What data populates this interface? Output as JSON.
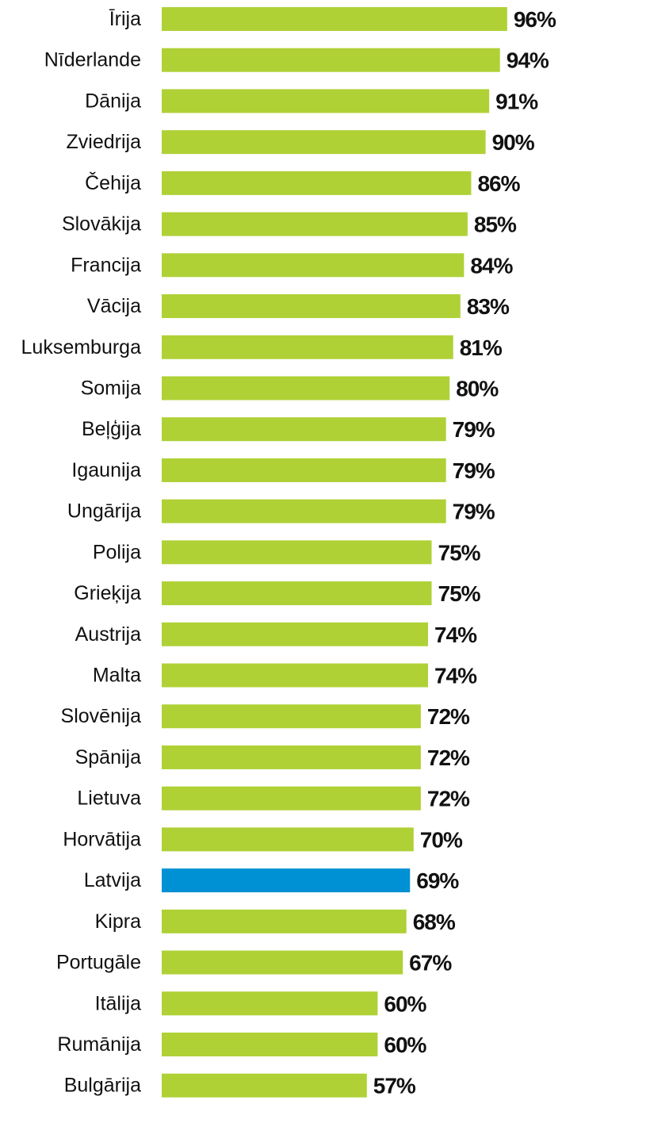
{
  "chart_data": {
    "type": "bar",
    "orientation": "horizontal",
    "unit": "%",
    "colors": {
      "default": "#afd136",
      "highlight": "#0091d5"
    },
    "highlight": "Latvija",
    "categories": [
      "Īrija",
      "Nīderlande",
      "Dānija",
      "Zviedrija",
      "Čehija",
      "Slovākija",
      "Francija",
      "Vācija",
      "Luksemburga",
      "Somija",
      "Beļģija",
      "Igaunija",
      "Ungārija",
      "Polija",
      "Grieķija",
      "Austrija",
      "Malta",
      "Slovēnija",
      "Spānija",
      "Lietuva",
      "Horvātija",
      "Latvija",
      "Kipra",
      "Portugāle",
      "Itālija",
      "Rumānija",
      "Bulgārija"
    ],
    "values": [
      96,
      94,
      91,
      90,
      86,
      85,
      84,
      83,
      81,
      80,
      79,
      79,
      79,
      75,
      75,
      74,
      74,
      72,
      72,
      72,
      70,
      69,
      68,
      67,
      60,
      60,
      57
    ],
    "labels": [
      "96%",
      "94%",
      "91%",
      "90%",
      "86%",
      "85%",
      "84%",
      "83%",
      "81%",
      "80%",
      "79%",
      "79%",
      "79%",
      "75%",
      "75%",
      "74%",
      "74%",
      "72%",
      "72%",
      "72%",
      "70%",
      "69%",
      "68%",
      "67%",
      "60%",
      "60%",
      "57%"
    ],
    "xlim": [
      0,
      100
    ],
    "grid": false
  }
}
